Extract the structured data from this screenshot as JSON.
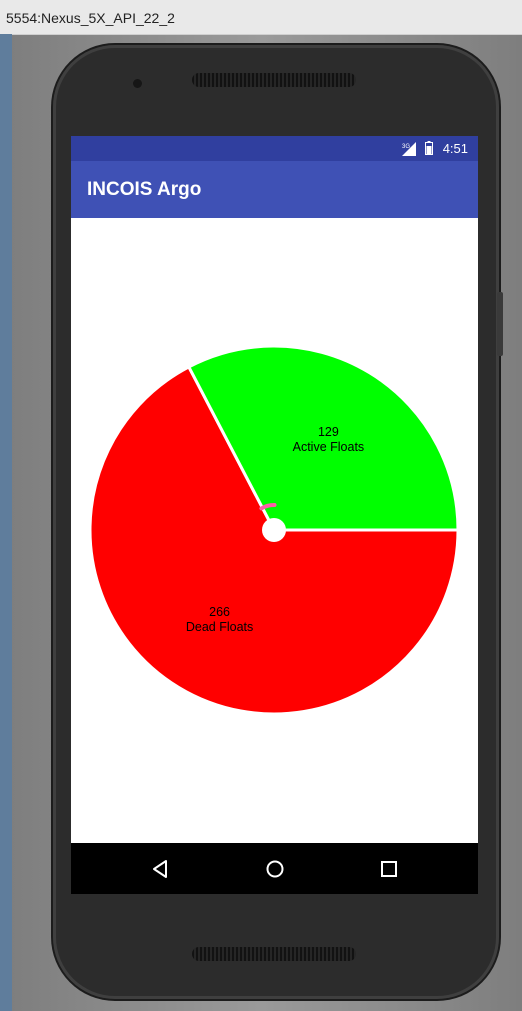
{
  "window": {
    "title": "5554:Nexus_5X_API_22_2"
  },
  "status_bar": {
    "time": "4:51",
    "signal_badge": "3G"
  },
  "app_bar": {
    "title": "INCOIS Argo"
  },
  "chart_data": {
    "type": "pie",
    "title": "",
    "slices": [
      {
        "label": "Dead Floats",
        "value": 266,
        "color": "#FF0000"
      },
      {
        "label": "Active Floats",
        "value": 129,
        "color": "#00FF00"
      }
    ],
    "start_angle_deg": 0,
    "direction": "clockwise",
    "hole": "small white center",
    "legend": "none"
  },
  "nav_bar": {
    "back": "back-triangle-icon",
    "home": "home-circle-icon",
    "recents": "recents-square-icon"
  },
  "colors": {
    "status_bar": "#303F9F",
    "app_bar": "#3F51B5",
    "dead": "#FF0000",
    "active": "#00FF00"
  }
}
